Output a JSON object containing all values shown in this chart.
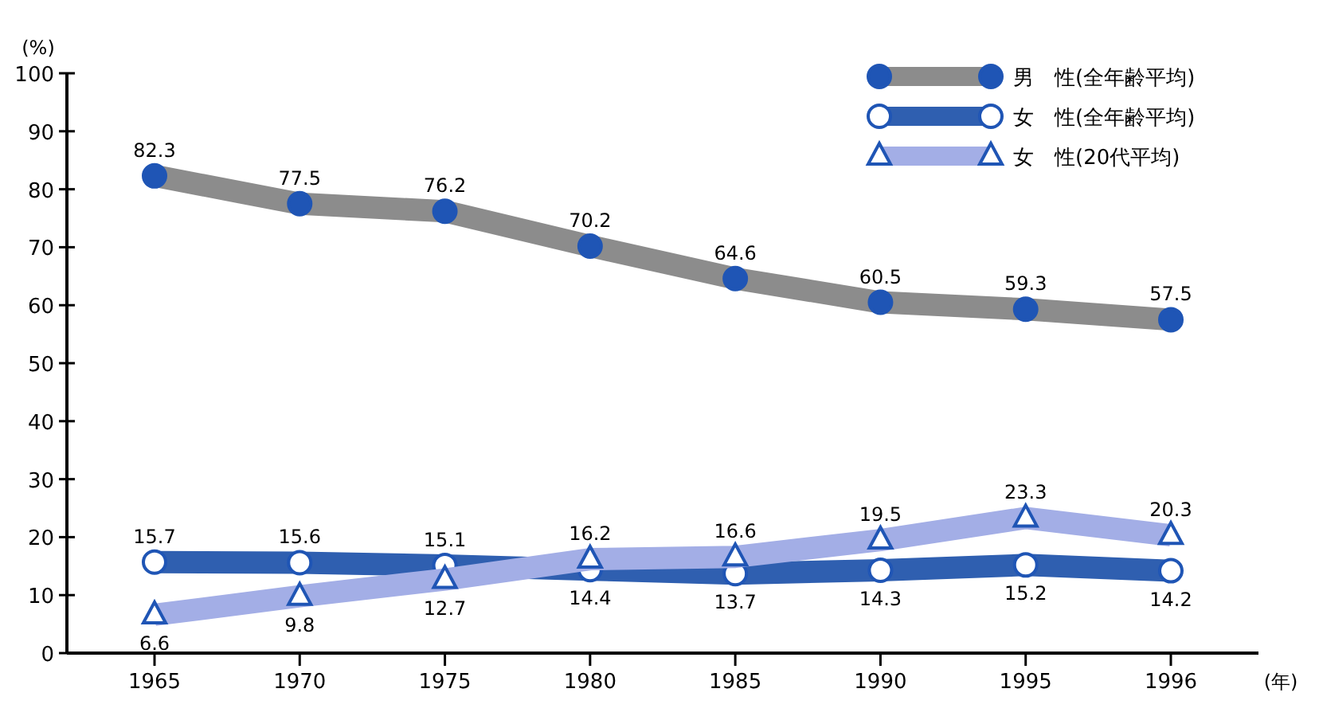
{
  "chart_data": {
    "type": "line",
    "ylabel": "(%)",
    "xlabel": "(年)",
    "categories": [
      "1965",
      "1970",
      "1975",
      "1980",
      "1985",
      "1990",
      "1995",
      "1996"
    ],
    "series": [
      {
        "name": "男　性(全年齢平均)",
        "color": "#8c8c8c",
        "values": [
          82.3,
          77.5,
          76.2,
          70.2,
          64.6,
          60.5,
          59.3,
          57.5
        ],
        "marker": "circle"
      },
      {
        "name": "女　性(全年齢平均)",
        "color": "#2f5fb0",
        "values": [
          15.7,
          15.6,
          15.1,
          14.4,
          13.7,
          14.3,
          15.2,
          14.2
        ],
        "marker": "circle"
      },
      {
        "name": "女　性(20代平均)",
        "color": "#a3aee6",
        "values": [
          6.6,
          9.8,
          12.7,
          16.2,
          16.6,
          19.5,
          23.3,
          20.3
        ],
        "marker": "triangle"
      }
    ],
    "ylim": [
      0,
      100
    ],
    "yticks": [
      0,
      10,
      20,
      30,
      40,
      50,
      60,
      70,
      80,
      90,
      100
    ],
    "data_labels": true,
    "legend": "top right",
    "grid": false
  }
}
